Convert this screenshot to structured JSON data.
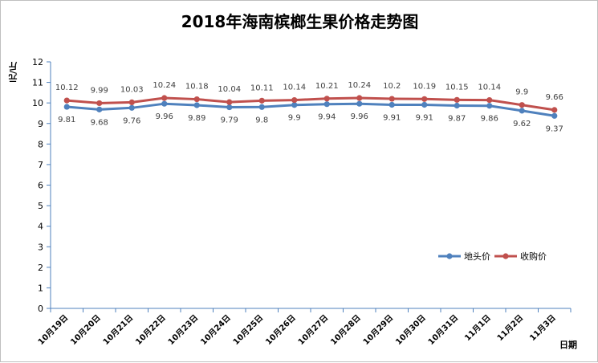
{
  "chart_data": {
    "type": "line",
    "title": "2018年海南槟榔生果价格走势图",
    "ylabel": "元/斤",
    "xlabel": "日期",
    "ylim": [
      0,
      12
    ],
    "yticks": [
      0,
      1,
      2,
      3,
      4,
      5,
      6,
      7,
      8,
      9,
      10,
      11,
      12
    ],
    "grid": false,
    "legend_position": "right",
    "categories": [
      "10月19日",
      "10月20日",
      "10月21日",
      "10月22日",
      "10月23日",
      "10月24日",
      "10月25日",
      "10月26日",
      "10月27日",
      "10月28日",
      "10月29日",
      "10月30日",
      "10月31日",
      "11月1日",
      "11月2日",
      "11月3日"
    ],
    "series": [
      {
        "name": "地头价",
        "color": "#4f81bd",
        "values": [
          9.81,
          9.68,
          9.76,
          9.96,
          9.89,
          9.79,
          9.8,
          9.9,
          9.94,
          9.96,
          9.91,
          9.91,
          9.87,
          9.86,
          9.62,
          9.37
        ]
      },
      {
        "name": "收购价",
        "color": "#c0504d",
        "values": [
          10.12,
          9.99,
          10.03,
          10.24,
          10.18,
          10.04,
          10.11,
          10.14,
          10.21,
          10.24,
          10.2,
          10.19,
          10.15,
          10.14,
          9.9,
          9.66
        ]
      }
    ]
  },
  "colors": {
    "axis": "#4f81bd"
  }
}
